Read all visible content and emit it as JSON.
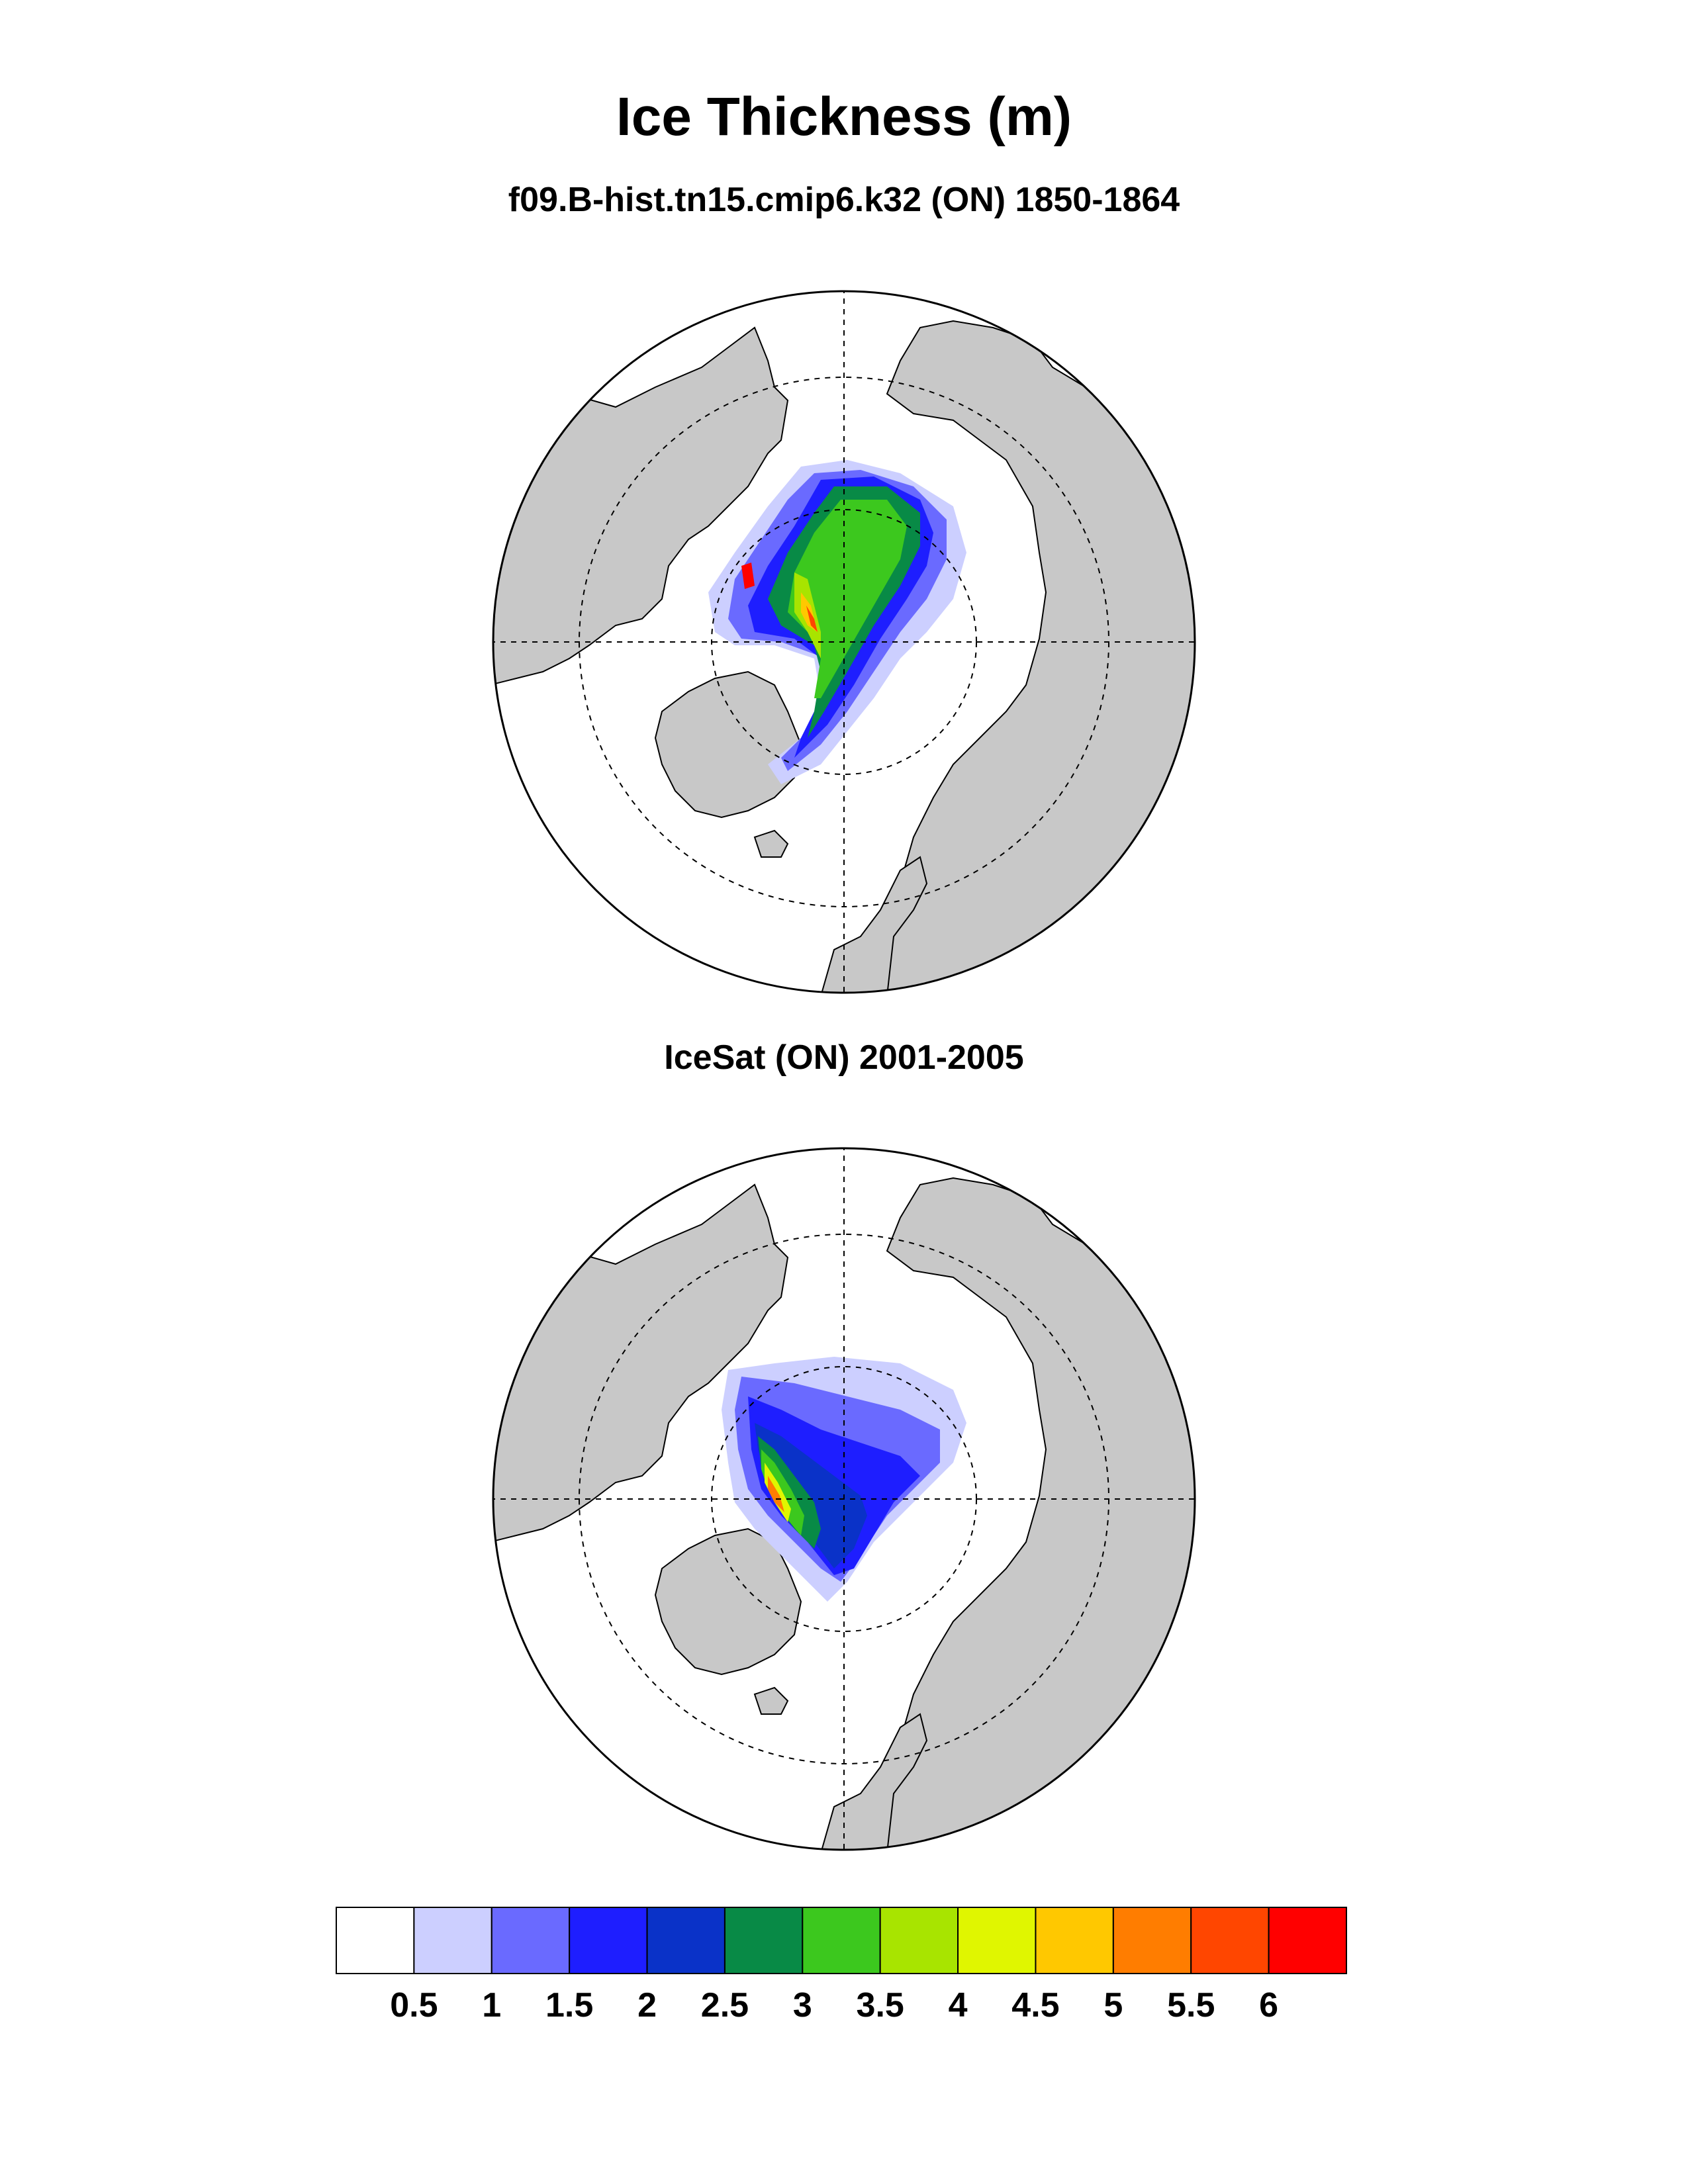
{
  "title": "Ice Thickness (m)",
  "panels": [
    {
      "subtitle": "f09.B-hist.tn15.cmip6.k32 (ON) 1850-1864",
      "source": "model"
    },
    {
      "subtitle": "IceSat (ON) 2001-2005",
      "source": "observation"
    }
  ],
  "colors": {
    "land": "#c8c8c8",
    "ocean": "#ffffff",
    "outline": "#000000"
  },
  "colorbar": {
    "levels": [
      "0.5",
      "1",
      "1.5",
      "2",
      "2.5",
      "3",
      "3.5",
      "4",
      "4.5",
      "5",
      "5.5",
      "6"
    ],
    "colors": [
      "#ffffff",
      "#cccfff",
      "#6a6aff",
      "#1e1eff",
      "#0a32c8",
      "#088a46",
      "#3cc81e",
      "#a8e400",
      "#e0f600",
      "#ffc800",
      "#ff7d00",
      "#ff4600",
      "#ff0000"
    ]
  }
}
